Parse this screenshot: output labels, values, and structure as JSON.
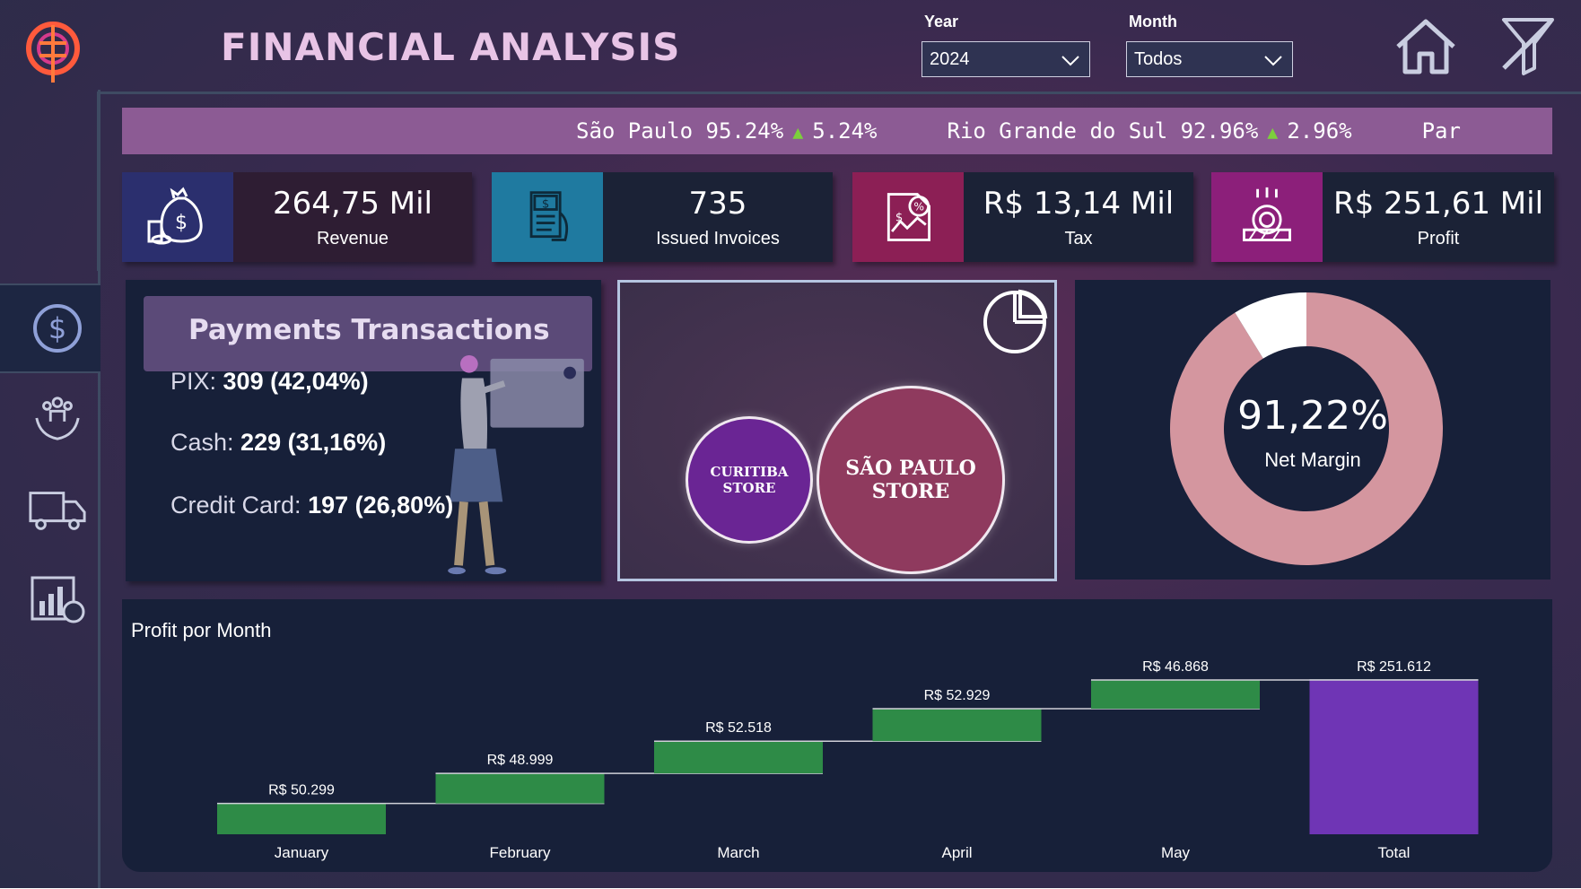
{
  "header": {
    "title": "FINANCIAL ANALYSIS",
    "year_label": "Year",
    "year_value": "2024",
    "month_label": "Month",
    "month_value": "Todos",
    "icons": [
      "logo-icon",
      "home-icon",
      "clear-filter-icon"
    ]
  },
  "sidebar": {
    "items": [
      {
        "name": "finance",
        "icon": "dollar-icon",
        "active": true
      },
      {
        "name": "people",
        "icon": "hands-people-icon",
        "active": false
      },
      {
        "name": "delivery",
        "icon": "truck-icon",
        "active": false
      },
      {
        "name": "sales",
        "icon": "chart-cart-icon",
        "active": false
      }
    ]
  },
  "ticker": {
    "items": [
      {
        "state": "São Paulo",
        "value": "95.24%",
        "change": "5.24%"
      },
      {
        "state": "Rio Grande do Sul",
        "value": "92.96%",
        "change": "2.96%"
      },
      {
        "state": "Par",
        "value": "",
        "change": ""
      }
    ],
    "up_color": "#7ccf3c"
  },
  "kpis": [
    {
      "value": "264,75 Mil",
      "label": "Revenue",
      "icon": "money-bag-icon",
      "color": "#2b2f6e"
    },
    {
      "value": "735",
      "label": "Issued Invoices",
      "icon": "invoice-icon",
      "color": "#1f7aa0"
    },
    {
      "value": "R$ 13,14 Mil",
      "label": "Tax",
      "icon": "tax-document-icon",
      "color": "#8c1f55"
    },
    {
      "value": "R$ 251,61 Mil",
      "label": "Profit",
      "icon": "coin-pot-icon",
      "color": "#8c1f7a"
    }
  ],
  "payments": {
    "title": "Payments Transactions",
    "lines": [
      {
        "label": "PIX: ",
        "count": "309",
        "pct": "(42,04%)"
      },
      {
        "label": "Cash: ",
        "count": "229",
        "pct": "(31,16%)"
      },
      {
        "label": "Credit Card: ",
        "count": "197",
        "pct": "(26,80%)"
      }
    ]
  },
  "stores": {
    "items": [
      {
        "line1": "CURITIBA",
        "line2": "STORE",
        "color": "#6a2594"
      },
      {
        "line1": "SÃO PAULO",
        "line2": "STORE",
        "color": "#8f3a5e"
      }
    ],
    "icon": "pie-chart-icon"
  },
  "net_margin": {
    "value": "91,22%",
    "label": "Net Margin",
    "fraction": 0.9122,
    "color": "#d4969f",
    "rest_color": "#ffffff"
  },
  "chart_data": {
    "type": "waterfall",
    "title": "Profit por Month",
    "categories": [
      "January",
      "February",
      "March",
      "April",
      "May",
      "Total"
    ],
    "values": [
      50299,
      48999,
      52518,
      52929,
      46868,
      251612
    ],
    "labels": [
      "R$ 50.299",
      "R$ 48.999",
      "R$ 52.518",
      "R$ 52.929",
      "R$ 46.868",
      "R$ 251.612"
    ],
    "increase_color": "#2e8b47",
    "total_color": "#6f35b5"
  }
}
